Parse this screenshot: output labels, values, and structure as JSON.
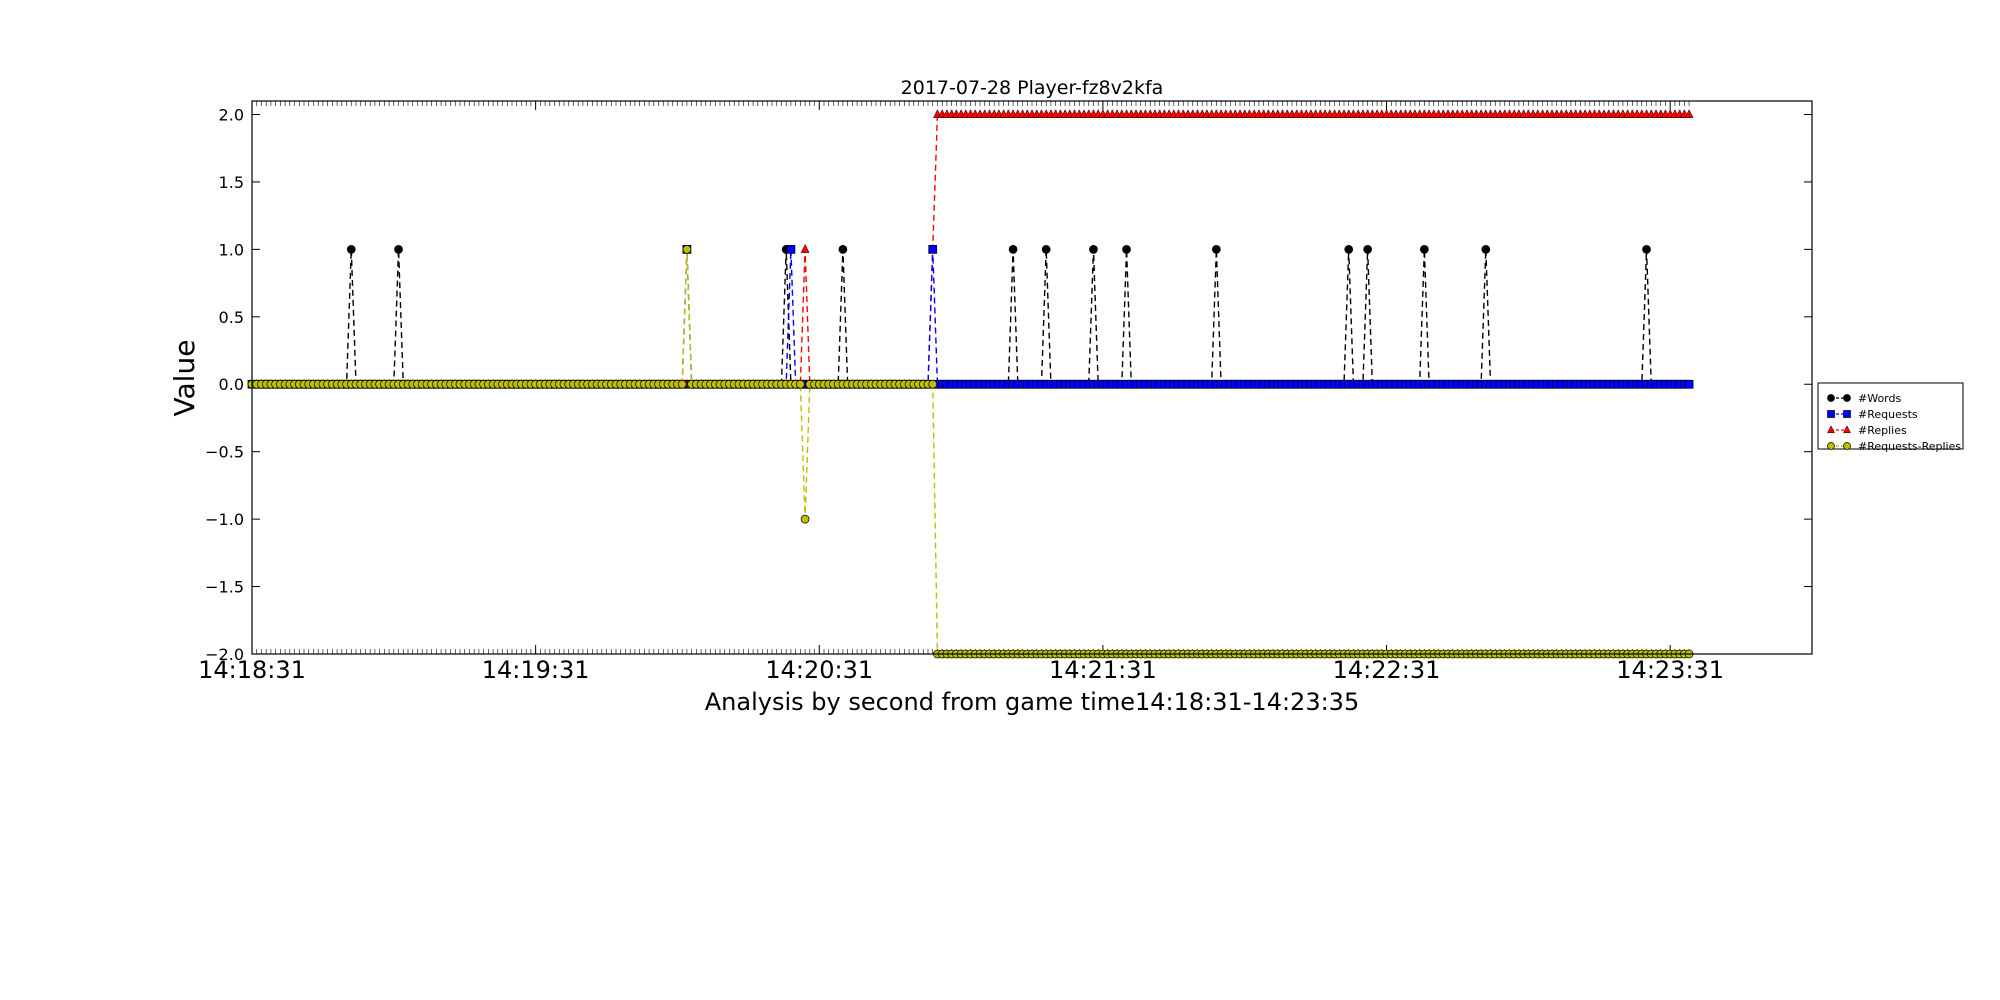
{
  "chart_data": {
    "type": "line",
    "title": "2017-07-28 Player-fz8v2kfa",
    "xlabel": "Analysis by second from game time14:18:31-14:23:35",
    "ylabel": "Value",
    "x_start": "14:18:31",
    "x_end": "14:23:35",
    "xlim": [
      "14:18:31",
      "14:24:01"
    ],
    "ylim": [
      -2.0,
      2.1
    ],
    "x_ticks": [
      "14:18:31",
      "14:19:31",
      "14:20:31",
      "14:21:31",
      "14:22:31",
      "14:23:31"
    ],
    "y_ticks": [
      -2.0,
      -1.5,
      -1.0,
      -0.5,
      0.0,
      0.5,
      1.0,
      1.5,
      2.0
    ],
    "y_tick_labels": [
      "−2.0",
      "−1.5",
      "−1.0",
      "−0.5",
      "0.0",
      "0.5",
      "1.0",
      "1.5",
      "2.0"
    ],
    "grid": false,
    "legend_position": "right",
    "series": [
      {
        "name": "#Words",
        "color": "#000000",
        "marker": "circle",
        "default": 0,
        "events": [
          {
            "t": "14:18:52",
            "v": 1
          },
          {
            "t": "14:19:02",
            "v": 1
          },
          {
            "t": "14:20:24",
            "v": 1
          },
          {
            "t": "14:20:36",
            "v": 1
          },
          {
            "t": "14:21:12",
            "v": 1
          },
          {
            "t": "14:21:19",
            "v": 1
          },
          {
            "t": "14:21:29",
            "v": 1
          },
          {
            "t": "14:21:36",
            "v": 1
          },
          {
            "t": "14:21:55",
            "v": 1
          },
          {
            "t": "14:22:23",
            "v": 1
          },
          {
            "t": "14:22:27",
            "v": 1
          },
          {
            "t": "14:22:39",
            "v": 1
          },
          {
            "t": "14:22:52",
            "v": 1
          },
          {
            "t": "14:23:26",
            "v": 1
          }
        ]
      },
      {
        "name": "#Requests",
        "color": "#0000ff",
        "marker": "square",
        "default": 0,
        "events": [
          {
            "t": "14:20:03",
            "v": 1
          },
          {
            "t": "14:20:25",
            "v": 1
          },
          {
            "t": "14:20:55",
            "v": 1
          }
        ]
      },
      {
        "name": "#Replies",
        "color": "#ff0000",
        "marker": "triangle",
        "default": 0,
        "events": [
          {
            "t": "14:20:28",
            "v": 1
          },
          {
            "t": "14:20:55",
            "v": 1
          },
          {
            "t": "14:20:56",
            "v": 2,
            "until": "14:23:35"
          }
        ]
      },
      {
        "name": "#Requests-Replies",
        "color": "#bfbf00",
        "marker": "circle",
        "default": 0,
        "events": [
          {
            "t": "14:20:03",
            "v": 1
          },
          {
            "t": "14:20:28",
            "v": -1
          },
          {
            "t": "14:20:56",
            "v": -2,
            "until": "14:23:35"
          }
        ]
      }
    ]
  }
}
